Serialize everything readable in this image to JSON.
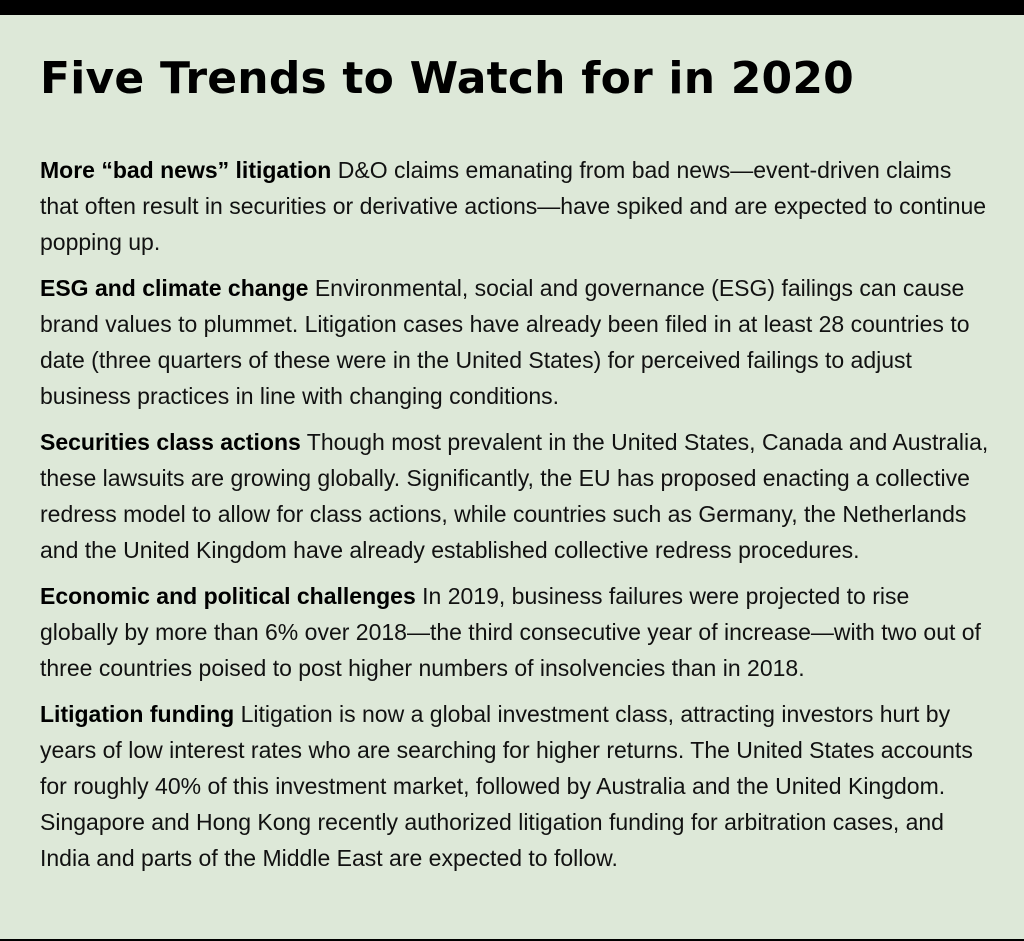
{
  "title": "Five Trends to Watch for in 2020",
  "items": [
    {
      "heading": "More “bad news” litigation",
      "text": "D&O claims emanating from bad news—event-driven claims that often result in securities or derivative actions—have spiked and are expected to continue popping up."
    },
    {
      "heading": "ESG and climate change",
      "text": "Environmental, social and governance (ESG) failings can cause brand values to plummet. Litigation cases have already been filed in at least 28 countries to date (three quarters of these were in the United States) for perceived failings to adjust business practices in line with changing conditions."
    },
    {
      "heading": "Securities class actions",
      "text": "Though most prevalent in the United States, Canada and Australia, these lawsuits are growing globally. Significantly, the EU has proposed enacting a collective redress model to allow for class actions, while countries such as Germany, the Netherlands and the United Kingdom have already established collective redress procedures."
    },
    {
      "heading": "Economic and political challenges",
      "text": "In 2019, business failures were projected to rise globally by more than 6% over 2018—the third consecutive year of increase—with two out of three countries poised to post higher numbers of insolvencies than in 2018."
    },
    {
      "heading": "Litigation funding",
      "text": "Litigation is now a global investment class, attracting investors hurt by years of low interest rates who are searching for higher returns. The United States accounts for roughly 40% of this investment market, followed by Australia and the United Kingdom. Singapore and Hong Kong recently authorized litigation funding for arbitration cases, and India and parts of the Middle East are expected to follow."
    }
  ]
}
